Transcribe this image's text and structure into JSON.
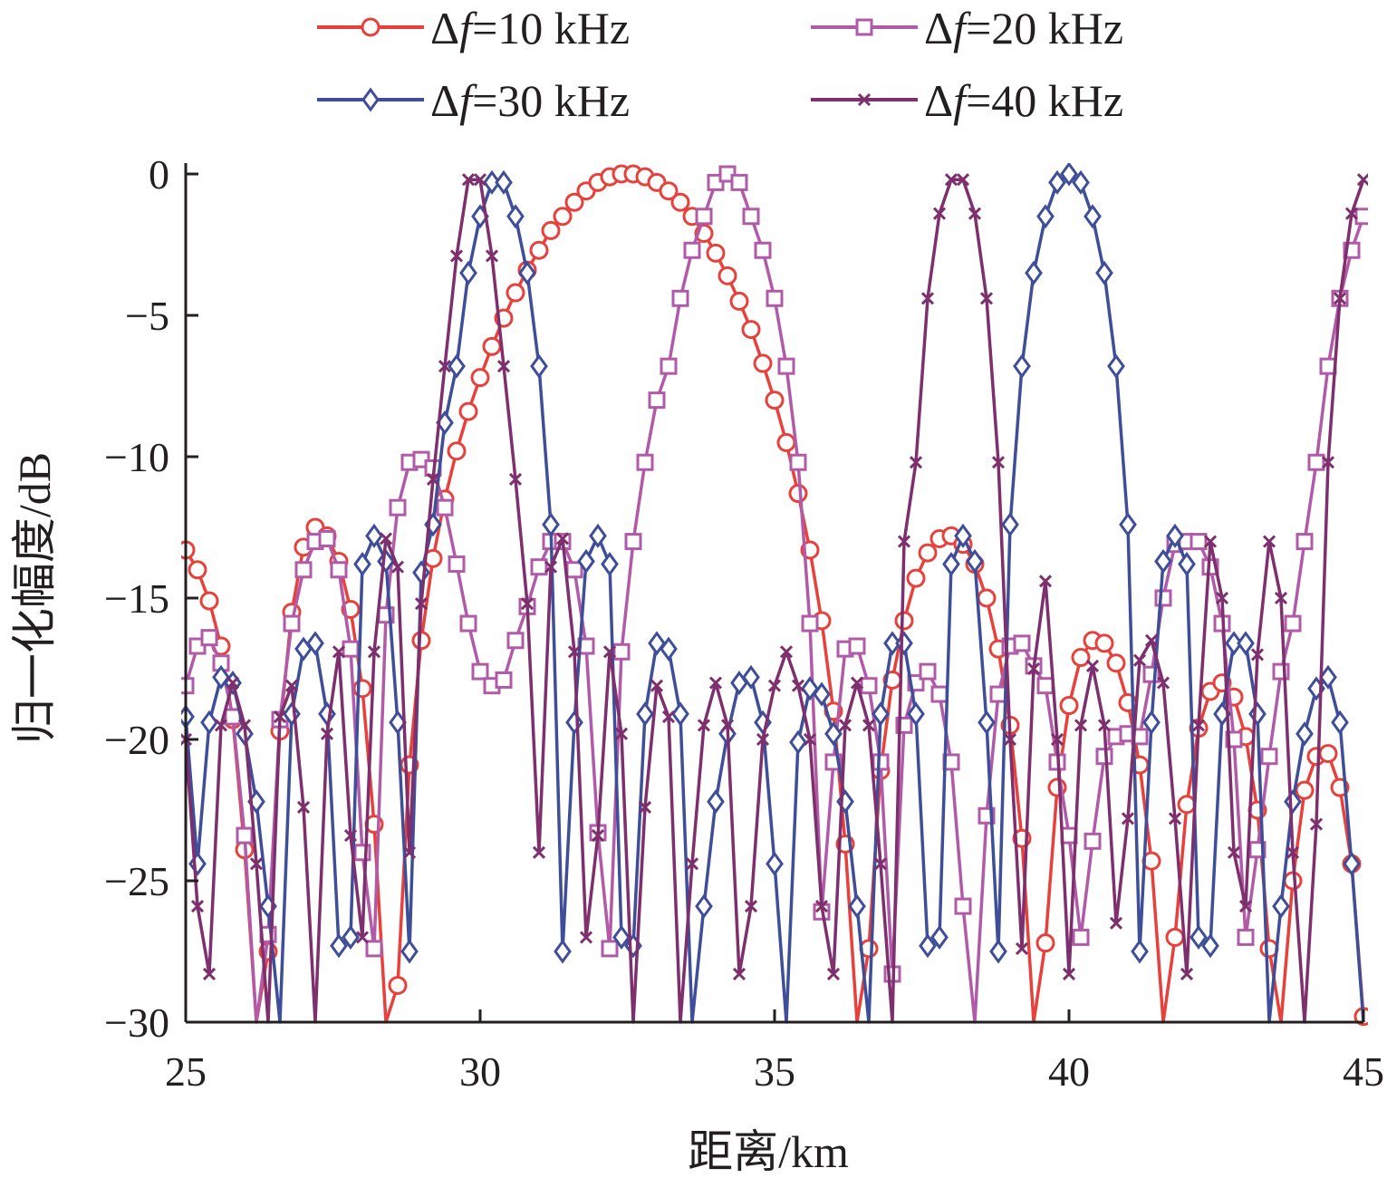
{
  "chart_data": {
    "type": "line",
    "title": "",
    "xlabel": "距离/km",
    "ylabel": "归一化幅度/dB",
    "xlim": [
      25,
      45
    ],
    "ylim": [
      -30,
      0
    ],
    "xticks": [
      25,
      30,
      35,
      40,
      45
    ],
    "yticks": [
      0,
      -5,
      -10,
      -15,
      -20,
      -25,
      -30
    ],
    "grid": false,
    "legend_position": "top",
    "series": [
      {
        "name": "Δf=10 kHz",
        "legend_prefix": "Δ",
        "legend_var": "f",
        "legend_value": "=10 kHz",
        "color": "#e8413c",
        "marker": "circle",
        "x": [
          25.0,
          25.2,
          25.4,
          25.6,
          25.8,
          26.0,
          26.2,
          26.4,
          26.6,
          26.8,
          27.0,
          27.2,
          27.4,
          27.6,
          27.8,
          28.0,
          28.2,
          28.4,
          28.6,
          28.8,
          29.0,
          29.2,
          29.4,
          29.6,
          29.8,
          30.0,
          30.2,
          30.4,
          30.6,
          30.8,
          31.0,
          31.2,
          31.4,
          31.6,
          31.8,
          32.0,
          32.2,
          32.4,
          32.6,
          32.8,
          33.0,
          33.2,
          33.4,
          33.6,
          33.8,
          34.0,
          34.2,
          34.4,
          34.6,
          34.8,
          35.0,
          35.2,
          35.4,
          35.6,
          35.8,
          36.0,
          36.2,
          36.4,
          36.6,
          36.8,
          37.0,
          37.2,
          37.4,
          37.6,
          37.8,
          38.0,
          38.2,
          38.4,
          38.6,
          38.8,
          39.0,
          39.2,
          39.4,
          39.6,
          39.8,
          40.0,
          40.2,
          40.4,
          40.6,
          40.8,
          41.0,
          41.2,
          41.4,
          41.6,
          41.8,
          42.0,
          42.2,
          42.4,
          42.6,
          42.8,
          43.0,
          43.2,
          43.4,
          43.6,
          43.8,
          44.0,
          44.2,
          44.4,
          44.6,
          44.8,
          45.0
        ],
        "y": [
          -13.3,
          -14.0,
          -15.1,
          -16.7,
          -19.3,
          -23.9,
          -30.0,
          -27.5,
          -19.7,
          -15.5,
          -13.2,
          -12.5,
          -12.8,
          -13.7,
          -15.4,
          -18.2,
          -23.0,
          -30.0,
          -28.7,
          -20.9,
          -16.5,
          -13.6,
          -11.5,
          -9.8,
          -8.4,
          -7.2,
          -6.1,
          -5.1,
          -4.2,
          -3.4,
          -2.7,
          -2.0,
          -1.5,
          -1.0,
          -0.6,
          -0.3,
          -0.1,
          0.0,
          0.0,
          -0.1,
          -0.3,
          -0.6,
          -1.0,
          -1.5,
          -2.1,
          -2.8,
          -3.6,
          -4.5,
          -5.5,
          -6.7,
          -8.0,
          -9.5,
          -11.3,
          -13.3,
          -15.8,
          -19.0,
          -23.7,
          -30.0,
          -27.4,
          -21.1,
          -17.9,
          -15.8,
          -14.3,
          -13.4,
          -12.9,
          -12.8,
          -13.1,
          -13.8,
          -15.0,
          -16.8,
          -19.5,
          -23.5,
          -30.0,
          -27.2,
          -21.7,
          -18.8,
          -17.1,
          -16.5,
          -16.6,
          -17.3,
          -18.7,
          -20.9,
          -24.3,
          -30.0,
          -27.0,
          -22.3,
          -19.6,
          -18.3,
          -18.0,
          -18.5,
          -19.9,
          -22.5,
          -27.4,
          -30.0,
          -25.0,
          -21.8,
          -20.6,
          -20.5,
          -21.7,
          -24.4,
          -29.8
        ]
      },
      {
        "name": "Δf=20 kHz",
        "legend_prefix": "Δ",
        "legend_var": "f",
        "legend_value": "=20 kHz",
        "color": "#b15ba8",
        "marker": "square",
        "x": [
          25.0,
          25.2,
          25.4,
          25.6,
          25.8,
          26.0,
          26.2,
          26.4,
          26.6,
          26.8,
          27.0,
          27.2,
          27.4,
          27.6,
          27.8,
          28.0,
          28.2,
          28.4,
          28.6,
          28.8,
          29.0,
          29.2,
          29.4,
          29.6,
          29.8,
          30.0,
          30.2,
          30.4,
          30.6,
          30.8,
          31.0,
          31.2,
          31.4,
          31.6,
          31.8,
          32.0,
          32.2,
          32.4,
          32.6,
          32.8,
          33.0,
          33.2,
          33.4,
          33.6,
          33.8,
          34.0,
          34.2,
          34.4,
          34.6,
          34.8,
          35.0,
          35.2,
          35.4,
          35.6,
          35.8,
          36.0,
          36.2,
          36.4,
          36.6,
          36.8,
          37.0,
          37.2,
          37.4,
          37.6,
          37.8,
          38.0,
          38.2,
          38.4,
          38.6,
          38.8,
          39.0,
          39.2,
          39.4,
          39.6,
          39.8,
          40.0,
          40.2,
          40.4,
          40.6,
          40.8,
          41.0,
          41.2,
          41.4,
          41.6,
          41.8,
          42.0,
          42.2,
          42.4,
          42.6,
          42.8,
          43.0,
          43.2,
          43.4,
          43.6,
          43.8,
          44.0,
          44.2,
          44.4,
          44.6,
          44.8,
          45.0
        ],
        "y": [
          -18.1,
          -16.7,
          -16.4,
          -17.3,
          -19.2,
          -23.4,
          -30.0,
          -26.9,
          -19.3,
          -15.9,
          -14.0,
          -13.0,
          -12.9,
          -14.0,
          -16.8,
          -24.0,
          -27.4,
          -15.6,
          -11.8,
          -10.2,
          -10.1,
          -10.4,
          -11.8,
          -13.8,
          -15.9,
          -17.6,
          -18.1,
          -17.9,
          -16.5,
          -15.3,
          -13.9,
          -13.0,
          -13.0,
          -14.0,
          -16.7,
          -23.3,
          -27.4,
          -16.9,
          -13.0,
          -10.2,
          -8.0,
          -6.8,
          -4.4,
          -2.7,
          -1.5,
          -0.3,
          0.0,
          -0.3,
          -1.5,
          -2.7,
          -4.4,
          -6.8,
          -10.2,
          -15.9,
          -26.1,
          -20.8,
          -16.8,
          -16.7,
          -18.1,
          -20.8,
          -28.3,
          -19.5,
          -18.0,
          -17.6,
          -18.4,
          -20.8,
          -25.9,
          -30.0,
          -22.7,
          -18.4,
          -16.7,
          -16.6,
          -17.4,
          -18.1,
          -20.8,
          -23.4,
          -27.0,
          -23.6,
          -20.6,
          -19.9,
          -19.8,
          -19.9,
          -17.7,
          -15.0,
          -13.1,
          -13.0,
          -13.0,
          -13.9,
          -15.9,
          -20.0,
          -27.0,
          -23.9,
          -20.6,
          -17.6,
          -15.9,
          -13.0,
          -10.2,
          -6.8,
          -4.4,
          -2.7,
          -1.5
        ]
      },
      {
        "name": "Δf=30 kHz",
        "legend_prefix": "Δ",
        "legend_var": "f",
        "legend_value": "=30 kHz",
        "color": "#3e4e98",
        "marker": "diamond",
        "x": [
          25.0,
          25.2,
          25.4,
          25.6,
          25.8,
          26.0,
          26.2,
          26.4,
          26.6,
          26.8,
          27.0,
          27.2,
          27.4,
          27.6,
          27.8,
          28.0,
          28.2,
          28.4,
          28.6,
          28.8,
          29.0,
          29.2,
          29.4,
          29.6,
          29.8,
          30.0,
          30.2,
          30.4,
          30.6,
          30.8,
          31.0,
          31.2,
          31.4,
          31.6,
          31.8,
          32.0,
          32.2,
          32.4,
          32.6,
          32.8,
          33.0,
          33.2,
          33.4,
          33.6,
          33.8,
          34.0,
          34.2,
          34.4,
          34.6,
          34.8,
          35.0,
          35.2,
          35.4,
          35.6,
          35.8,
          36.0,
          36.2,
          36.4,
          36.6,
          36.8,
          37.0,
          37.2,
          37.4,
          37.6,
          37.8,
          38.0,
          38.2,
          38.4,
          38.6,
          38.8,
          39.0,
          39.2,
          39.4,
          39.6,
          39.8,
          40.0,
          40.2,
          40.4,
          40.6,
          40.8,
          41.0,
          41.2,
          41.4,
          41.6,
          41.8,
          42.0,
          42.2,
          42.4,
          42.6,
          42.8,
          43.0,
          43.2,
          43.4,
          43.6,
          43.8,
          44.0,
          44.2,
          44.4,
          44.6,
          44.8,
          45.0
        ],
        "y": [
          -19.2,
          -24.4,
          -19.4,
          -17.8,
          -18.0,
          -19.8,
          -22.2,
          -25.9,
          -30.0,
          -19.1,
          -16.8,
          -16.6,
          -19.1,
          -27.3,
          -27.0,
          -13.8,
          -12.8,
          -13.7,
          -19.4,
          -27.5,
          -14.1,
          -12.4,
          -8.8,
          -6.8,
          -3.5,
          -1.5,
          -0.3,
          -0.3,
          -1.5,
          -3.5,
          -6.8,
          -12.4,
          -27.5,
          -19.4,
          -13.7,
          -12.8,
          -13.8,
          -27.0,
          -27.3,
          -19.1,
          -16.6,
          -16.8,
          -19.1,
          -30.0,
          -25.9,
          -22.2,
          -19.8,
          -18.0,
          -17.8,
          -19.4,
          -24.4,
          -30.0,
          -20.1,
          -18.2,
          -18.4,
          -19.8,
          -22.2,
          -25.9,
          -30.0,
          -19.1,
          -16.6,
          -16.6,
          -19.1,
          -27.3,
          -27.0,
          -13.8,
          -12.8,
          -13.7,
          -19.4,
          -27.5,
          -12.4,
          -6.8,
          -3.5,
          -1.5,
          -0.3,
          0.0,
          -0.3,
          -1.5,
          -3.5,
          -6.8,
          -12.4,
          -27.5,
          -19.4,
          -13.7,
          -12.8,
          -13.8,
          -27.0,
          -27.3,
          -19.1,
          -16.6,
          -16.6,
          -19.1,
          -30.0,
          -25.9,
          -22.2,
          -19.8,
          -18.2,
          -17.8,
          -19.4,
          -24.4,
          -30.0
        ]
      },
      {
        "name": "Δf=40 kHz",
        "legend_prefix": "Δ",
        "legend_var": "f",
        "legend_value": "=40 kHz",
        "color": "#7e2f6e",
        "marker": "x",
        "x": [
          25.0,
          25.2,
          25.4,
          25.6,
          25.8,
          26.0,
          26.2,
          26.4,
          26.6,
          26.8,
          27.0,
          27.2,
          27.4,
          27.6,
          27.8,
          28.0,
          28.2,
          28.4,
          28.6,
          28.8,
          29.0,
          29.2,
          29.4,
          29.6,
          29.8,
          30.0,
          30.2,
          30.4,
          30.6,
          30.8,
          31.0,
          31.2,
          31.4,
          31.6,
          31.8,
          32.0,
          32.2,
          32.4,
          32.6,
          32.8,
          33.0,
          33.2,
          33.4,
          33.6,
          33.8,
          34.0,
          34.2,
          34.4,
          34.6,
          34.8,
          35.0,
          35.2,
          35.4,
          35.6,
          35.8,
          36.0,
          36.2,
          36.4,
          36.6,
          36.8,
          37.0,
          37.2,
          37.4,
          37.6,
          37.8,
          38.0,
          38.2,
          38.4,
          38.6,
          38.8,
          39.0,
          39.2,
          39.4,
          39.6,
          39.8,
          40.0,
          40.2,
          40.4,
          40.6,
          40.8,
          41.0,
          41.2,
          41.4,
          41.6,
          41.8,
          42.0,
          42.2,
          42.4,
          42.6,
          42.8,
          43.0,
          43.2,
          43.4,
          43.6,
          43.8,
          44.0,
          44.2,
          44.4,
          44.6,
          44.8,
          45.0
        ],
        "y": [
          -20.0,
          -25.9,
          -28.3,
          -19.5,
          -18.0,
          -19.5,
          -24.4,
          -30.0,
          -19.2,
          -18.1,
          -22.4,
          -30.0,
          -19.8,
          -16.9,
          -23.4,
          -27.0,
          -16.9,
          -12.9,
          -13.9,
          -24.0,
          -15.2,
          -10.8,
          -6.8,
          -2.9,
          -0.2,
          -0.2,
          -2.9,
          -6.8,
          -10.8,
          -15.2,
          -24.0,
          -13.9,
          -12.9,
          -16.9,
          -27.0,
          -23.4,
          -16.9,
          -19.8,
          -30.0,
          -22.4,
          -18.1,
          -19.2,
          -30.0,
          -24.4,
          -19.5,
          -18.0,
          -19.5,
          -28.3,
          -25.9,
          -20.0,
          -18.1,
          -16.9,
          -18.1,
          -20.0,
          -25.9,
          -28.3,
          -19.5,
          -18.0,
          -19.5,
          -24.4,
          -30.0,
          -13.0,
          -10.2,
          -4.4,
          -1.4,
          -0.2,
          -0.2,
          -1.4,
          -4.4,
          -10.2,
          -20.0,
          -27.4,
          -17.5,
          -14.4,
          -20.0,
          -28.3,
          -19.5,
          -17.4,
          -19.5,
          -26.5,
          -22.8,
          -17.2,
          -16.5,
          -18.0,
          -22.8,
          -28.3,
          -19.5,
          -13.0,
          -15.0,
          -24.0,
          -25.9,
          -17.0,
          -13.0,
          -15.0,
          -24.0,
          -30.0,
          -23.0,
          -10.2,
          -4.4,
          -1.4,
          -0.2
        ]
      }
    ]
  }
}
